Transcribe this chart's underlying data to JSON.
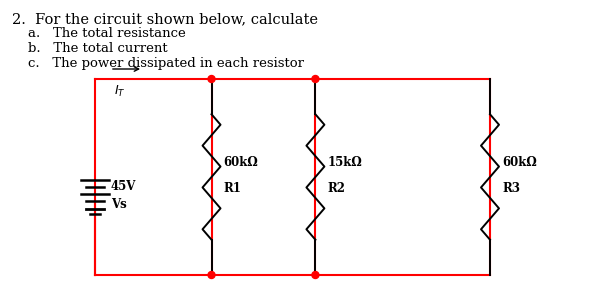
{
  "title_line1": "2.  For the circuit shown below, calculate",
  "items": [
    "a.   The total resistance",
    "b.   The total current",
    "c.   The power dissipated in each resistor"
  ],
  "bg_color": "#ffffff",
  "text_color": "#000000",
  "wire_color": "#ff0000",
  "component_color": "#000000",
  "resistors": [
    {
      "label": "60kΩ",
      "name": "R1"
    },
    {
      "label": "15kΩ",
      "name": "R2"
    },
    {
      "label": "60kΩ",
      "name": "R3"
    }
  ],
  "font_size_title": 10.5,
  "font_size_items": 9.5
}
